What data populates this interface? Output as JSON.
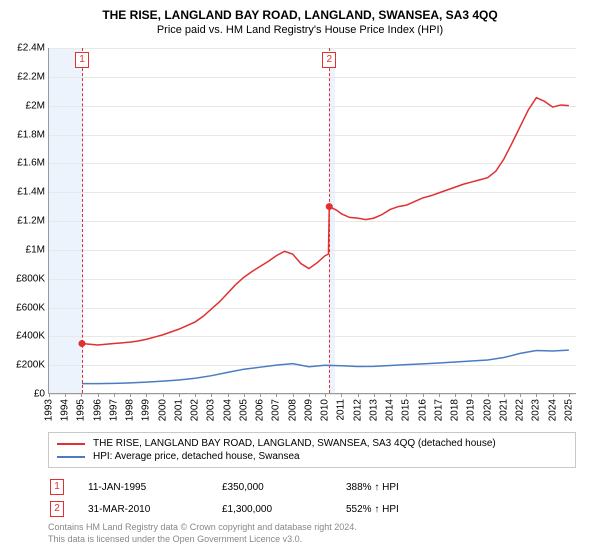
{
  "title": "THE RISE, LANGLAND BAY ROAD, LANGLAND, SWANSEA, SA3 4QQ",
  "subtitle": "Price paid vs. HM Land Registry's House Price Index (HPI)",
  "chart": {
    "type": "line",
    "background_color": "#ffffff",
    "grid_color": "#e8e8e8",
    "axis_color": "#999999",
    "shade_color": "rgba(200,220,245,0.35)",
    "title_fontsize": 12,
    "subtitle_fontsize": 11,
    "tick_fontsize": 10,
    "x_min": 1993,
    "x_max": 2025.5,
    "y_min": 0,
    "y_max": 2400000,
    "y_ticks": [
      {
        "v": 0,
        "label": "£0"
      },
      {
        "v": 200000,
        "label": "£200K"
      },
      {
        "v": 400000,
        "label": "£400K"
      },
      {
        "v": 600000,
        "label": "£600K"
      },
      {
        "v": 800000,
        "label": "£800K"
      },
      {
        "v": 1000000,
        "label": "£1M"
      },
      {
        "v": 1200000,
        "label": "£1.2M"
      },
      {
        "v": 1400000,
        "label": "£1.4M"
      },
      {
        "v": 1600000,
        "label": "£1.6M"
      },
      {
        "v": 1800000,
        "label": "£1.8M"
      },
      {
        "v": 2000000,
        "label": "£2M"
      },
      {
        "v": 2200000,
        "label": "£2.2M"
      },
      {
        "v": 2400000,
        "label": "£2.4M"
      }
    ],
    "x_ticks": [
      1993,
      1994,
      1995,
      1996,
      1997,
      1998,
      1999,
      2000,
      2001,
      2002,
      2003,
      2004,
      2005,
      2006,
      2007,
      2008,
      2009,
      2010,
      2011,
      2012,
      2013,
      2014,
      2015,
      2016,
      2017,
      2018,
      2019,
      2020,
      2021,
      2022,
      2023,
      2024,
      2025
    ],
    "shade_ranges": [
      {
        "x0": 1993,
        "x1": 1995.03
      },
      {
        "x0": 2010.25,
        "x1": 2010.6
      }
    ],
    "vdash": [
      1995.03,
      2010.25
    ],
    "marker_labels": [
      {
        "x": 1995.03,
        "n": "1"
      },
      {
        "x": 2010.25,
        "n": "2"
      }
    ],
    "series": [
      {
        "name": "property",
        "color": "#e03030",
        "width": 1.5,
        "markers": [
          {
            "x": 1995.03,
            "y": 350000
          },
          {
            "x": 2010.25,
            "y": 1300000
          }
        ],
        "points": [
          [
            1995.03,
            350000
          ],
          [
            1995.5,
            345000
          ],
          [
            1996,
            340000
          ],
          [
            1996.5,
            345000
          ],
          [
            1997,
            350000
          ],
          [
            1997.5,
            355000
          ],
          [
            1998,
            360000
          ],
          [
            1998.5,
            368000
          ],
          [
            1999,
            380000
          ],
          [
            1999.5,
            395000
          ],
          [
            2000,
            410000
          ],
          [
            2000.5,
            430000
          ],
          [
            2001,
            450000
          ],
          [
            2001.5,
            475000
          ],
          [
            2002,
            500000
          ],
          [
            2002.5,
            540000
          ],
          [
            2003,
            590000
          ],
          [
            2003.5,
            640000
          ],
          [
            2004,
            700000
          ],
          [
            2004.5,
            760000
          ],
          [
            2005,
            810000
          ],
          [
            2005.5,
            850000
          ],
          [
            2006,
            885000
          ],
          [
            2006.5,
            920000
          ],
          [
            2007,
            960000
          ],
          [
            2007.5,
            990000
          ],
          [
            2008,
            970000
          ],
          [
            2008.5,
            905000
          ],
          [
            2009,
            870000
          ],
          [
            2009.5,
            910000
          ],
          [
            2010,
            960000
          ],
          [
            2010.2,
            970000
          ],
          [
            2010.25,
            1300000
          ],
          [
            2010.7,
            1275000
          ],
          [
            2011,
            1250000
          ],
          [
            2011.5,
            1225000
          ],
          [
            2012,
            1220000
          ],
          [
            2012.5,
            1210000
          ],
          [
            2013,
            1220000
          ],
          [
            2013.5,
            1245000
          ],
          [
            2014,
            1280000
          ],
          [
            2014.5,
            1300000
          ],
          [
            2015,
            1310000
          ],
          [
            2015.5,
            1335000
          ],
          [
            2016,
            1360000
          ],
          [
            2016.5,
            1375000
          ],
          [
            2017,
            1395000
          ],
          [
            2017.5,
            1415000
          ],
          [
            2018,
            1435000
          ],
          [
            2018.5,
            1455000
          ],
          [
            2019,
            1470000
          ],
          [
            2019.5,
            1485000
          ],
          [
            2020,
            1500000
          ],
          [
            2020.5,
            1545000
          ],
          [
            2021,
            1630000
          ],
          [
            2021.5,
            1740000
          ],
          [
            2022,
            1855000
          ],
          [
            2022.5,
            1970000
          ],
          [
            2023,
            2055000
          ],
          [
            2023.5,
            2030000
          ],
          [
            2024,
            1990000
          ],
          [
            2024.5,
            2005000
          ],
          [
            2025,
            2000000
          ]
        ]
      },
      {
        "name": "hpi",
        "color": "#4a7cc4",
        "width": 1.5,
        "points": [
          [
            1995.03,
            72000
          ],
          [
            1996,
            72000
          ],
          [
            1997,
            74000
          ],
          [
            1998,
            77000
          ],
          [
            1999,
            82000
          ],
          [
            2000,
            89000
          ],
          [
            2001,
            97000
          ],
          [
            2002,
            109000
          ],
          [
            2003,
            127000
          ],
          [
            2004,
            150000
          ],
          [
            2005,
            172000
          ],
          [
            2006,
            186000
          ],
          [
            2007,
            200000
          ],
          [
            2008,
            211000
          ],
          [
            2009,
            189000
          ],
          [
            2010,
            199000
          ],
          [
            2011,
            196000
          ],
          [
            2012,
            191000
          ],
          [
            2013,
            192000
          ],
          [
            2014,
            198000
          ],
          [
            2015,
            204000
          ],
          [
            2016,
            209000
          ],
          [
            2017,
            215000
          ],
          [
            2018,
            222000
          ],
          [
            2019,
            229000
          ],
          [
            2020,
            236000
          ],
          [
            2021,
            253000
          ],
          [
            2022,
            282000
          ],
          [
            2023,
            302000
          ],
          [
            2024,
            298000
          ],
          [
            2025,
            304000
          ]
        ]
      }
    ]
  },
  "legend": {
    "items": [
      {
        "color": "#e03030",
        "label": "THE RISE, LANGLAND BAY ROAD, LANGLAND, SWANSEA, SA3 4QQ (detached house)"
      },
      {
        "color": "#4a7cc4",
        "label": "HPI: Average price, detached house, Swansea"
      }
    ]
  },
  "events": [
    {
      "n": "1",
      "date": "11-JAN-1995",
      "price": "£350,000",
      "pct": "388% ↑ HPI"
    },
    {
      "n": "2",
      "date": "31-MAR-2010",
      "price": "£1,300,000",
      "pct": "552% ↑ HPI"
    }
  ],
  "footer": {
    "line1": "Contains HM Land Registry data © Crown copyright and database right 2024.",
    "line2": "This data is licensed under the Open Government Licence v3.0."
  }
}
